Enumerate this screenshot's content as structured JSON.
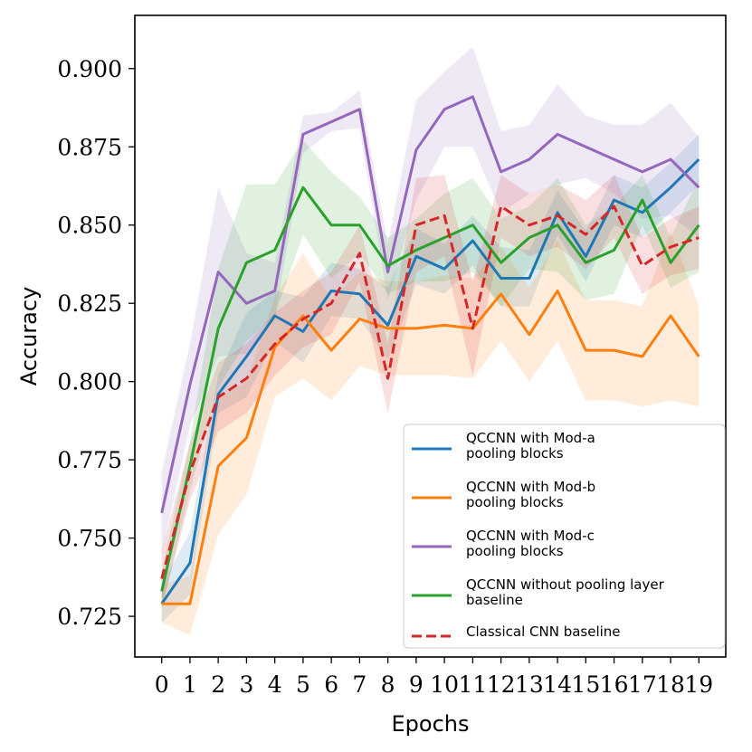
{
  "chart_data": {
    "type": "line",
    "xlabel": "Epochs",
    "ylabel": "Accuracy",
    "x": [
      0,
      1,
      2,
      3,
      4,
      5,
      6,
      7,
      8,
      9,
      10,
      11,
      12,
      13,
      14,
      15,
      16,
      17,
      18,
      19
    ],
    "xticks": [
      "0",
      "1",
      "2",
      "3",
      "4",
      "5",
      "6",
      "7",
      "8",
      "9",
      "10",
      "11",
      "12",
      "13",
      "14",
      "15",
      "16",
      "17",
      "18",
      "19"
    ],
    "ylim": [
      0.712,
      0.917
    ],
    "yticks": [
      0.725,
      0.75,
      0.775,
      0.8,
      0.825,
      0.85,
      0.875,
      0.9
    ],
    "ytick_labels": [
      "0.725",
      "0.750",
      "0.775",
      "0.800",
      "0.825",
      "0.850",
      "0.875",
      "0.900"
    ],
    "grid": false,
    "legend_position": "bottom-right",
    "series": [
      {
        "name": "QCCNN with Mod-a\npooling blocks",
        "color": "#1f77b4",
        "dash": "solid",
        "values": [
          0.729,
          0.742,
          0.796,
          0.808,
          0.821,
          0.816,
          0.829,
          0.828,
          0.818,
          0.84,
          0.836,
          0.845,
          0.833,
          0.833,
          0.854,
          0.84,
          0.858,
          0.854,
          0.862,
          0.871
        ],
        "band_upper": [
          0.735,
          0.752,
          0.802,
          0.822,
          0.829,
          0.827,
          0.838,
          0.836,
          0.83,
          0.849,
          0.844,
          0.853,
          0.843,
          0.842,
          0.861,
          0.848,
          0.866,
          0.862,
          0.87,
          0.879
        ],
        "band_lower": [
          0.723,
          0.732,
          0.79,
          0.795,
          0.813,
          0.806,
          0.821,
          0.82,
          0.807,
          0.831,
          0.828,
          0.837,
          0.824,
          0.824,
          0.847,
          0.832,
          0.85,
          0.846,
          0.854,
          0.863
        ]
      },
      {
        "name": "QCCNN with Mod-b\npooling blocks",
        "color": "#ff7f0e",
        "dash": "solid",
        "values": [
          0.729,
          0.729,
          0.773,
          0.782,
          0.811,
          0.821,
          0.81,
          0.82,
          0.817,
          0.817,
          0.818,
          0.817,
          0.828,
          0.815,
          0.829,
          0.81,
          0.81,
          0.808,
          0.821,
          0.808
        ],
        "band_upper": [
          0.735,
          0.738,
          0.795,
          0.8,
          0.827,
          0.841,
          0.826,
          0.835,
          0.832,
          0.832,
          0.834,
          0.833,
          0.843,
          0.83,
          0.845,
          0.826,
          0.826,
          0.824,
          0.848,
          0.824
        ],
        "band_lower": [
          0.723,
          0.719,
          0.751,
          0.764,
          0.795,
          0.801,
          0.794,
          0.805,
          0.802,
          0.802,
          0.802,
          0.801,
          0.813,
          0.8,
          0.813,
          0.794,
          0.794,
          0.792,
          0.794,
          0.792
        ]
      },
      {
        "name": "QCCNN with Mod-c\npooling blocks",
        "color": "#9467bd",
        "dash": "solid",
        "values": [
          0.758,
          0.799,
          0.835,
          0.825,
          0.829,
          0.879,
          0.883,
          0.887,
          0.835,
          0.874,
          0.887,
          0.891,
          0.867,
          0.871,
          0.879,
          0.875,
          0.871,
          0.867,
          0.871,
          0.862
        ],
        "band_upper": [
          0.771,
          0.812,
          0.862,
          0.841,
          0.838,
          0.885,
          0.886,
          0.893,
          0.844,
          0.89,
          0.899,
          0.907,
          0.88,
          0.882,
          0.895,
          0.885,
          0.882,
          0.882,
          0.889,
          0.878
        ],
        "band_lower": [
          0.745,
          0.786,
          0.808,
          0.809,
          0.82,
          0.873,
          0.88,
          0.881,
          0.826,
          0.858,
          0.875,
          0.875,
          0.854,
          0.86,
          0.863,
          0.865,
          0.86,
          0.852,
          0.853,
          0.846
        ]
      },
      {
        "name": "QCCNN without pooling layer\nbaseline",
        "color": "#2ca02c",
        "dash": "solid",
        "values": [
          0.733,
          0.773,
          0.817,
          0.838,
          0.842,
          0.862,
          0.85,
          0.85,
          0.837,
          0.842,
          0.846,
          0.85,
          0.838,
          0.846,
          0.85,
          0.838,
          0.842,
          0.858,
          0.838,
          0.85
        ],
        "band_upper": [
          0.739,
          0.781,
          0.836,
          0.863,
          0.863,
          0.877,
          0.867,
          0.859,
          0.846,
          0.852,
          0.86,
          0.865,
          0.852,
          0.856,
          0.865,
          0.85,
          0.856,
          0.866,
          0.846,
          0.865
        ],
        "band_lower": [
          0.727,
          0.765,
          0.798,
          0.813,
          0.821,
          0.847,
          0.833,
          0.841,
          0.828,
          0.832,
          0.832,
          0.835,
          0.824,
          0.836,
          0.835,
          0.826,
          0.828,
          0.85,
          0.83,
          0.835
        ]
      },
      {
        "name": "Classical CNN baseline",
        "color": "#d62728",
        "dash": "dashed",
        "values": [
          0.737,
          0.771,
          0.795,
          0.801,
          0.812,
          0.82,
          0.825,
          0.841,
          0.801,
          0.85,
          0.853,
          0.817,
          0.856,
          0.85,
          0.853,
          0.847,
          0.856,
          0.837,
          0.843,
          0.846
        ],
        "band_upper": [
          0.746,
          0.78,
          0.806,
          0.812,
          0.822,
          0.829,
          0.835,
          0.85,
          0.812,
          0.865,
          0.866,
          0.832,
          0.866,
          0.86,
          0.863,
          0.858,
          0.866,
          0.846,
          0.852,
          0.856
        ],
        "band_lower": [
          0.728,
          0.762,
          0.784,
          0.79,
          0.802,
          0.811,
          0.815,
          0.832,
          0.79,
          0.835,
          0.84,
          0.802,
          0.846,
          0.84,
          0.843,
          0.836,
          0.846,
          0.828,
          0.834,
          0.836
        ]
      }
    ]
  }
}
